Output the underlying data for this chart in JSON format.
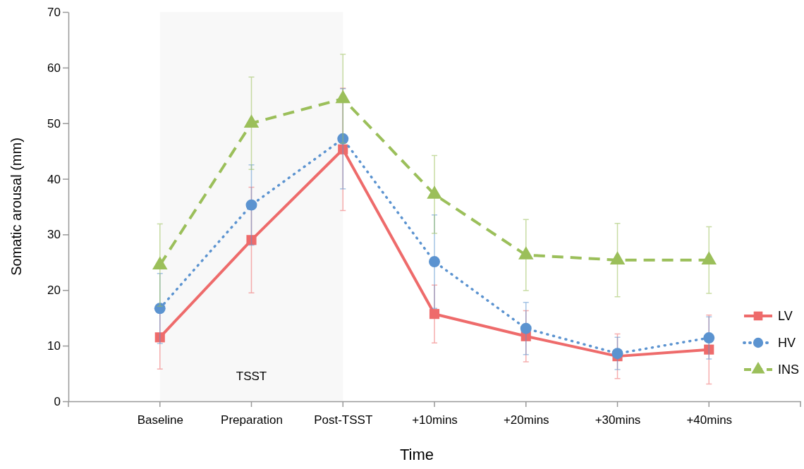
{
  "chart_data": {
    "type": "line",
    "xlabel": "Time",
    "ylabel": "Somatic arousal (mm)",
    "categories": [
      "Baseline",
      "Preparation",
      "Post-TSST",
      "+10mins",
      "+20mins",
      "+30mins",
      "+40mins"
    ],
    "ylim": [
      0,
      70
    ],
    "yticks": [
      0,
      10,
      20,
      30,
      40,
      50,
      60,
      70
    ],
    "grid": false,
    "legend": "right",
    "bands": [
      {
        "axis": "x",
        "from": "Baseline",
        "to": "Post-TSST",
        "label": "TSST",
        "color": "#f8f8f8"
      }
    ],
    "series": [
      {
        "name": "LV",
        "color": "#ee6b6b",
        "marker": "square",
        "line_style": "solid",
        "values": [
          11.5,
          29,
          45.3,
          15.7,
          11.7,
          8.1,
          9.3
        ],
        "errors": [
          5.7,
          9.5,
          11,
          5.2,
          4.6,
          4,
          6.2
        ]
      },
      {
        "name": "HV",
        "color": "#5b93d0",
        "marker": "circle",
        "line_style": "dotted",
        "values": [
          16.7,
          35.3,
          47.2,
          25.1,
          13.1,
          8.6,
          11.4
        ],
        "errors": [
          6.3,
          7.2,
          9,
          8.4,
          4.7,
          2.9,
          3.8
        ]
      },
      {
        "name": "INS",
        "color": "#9bbf5a",
        "marker": "triangle",
        "line_style": "dashed",
        "values": [
          24.5,
          50,
          54.4,
          37.2,
          26.3,
          25.4,
          25.4
        ],
        "errors": [
          7.4,
          8.3,
          8,
          7,
          6.4,
          6.6,
          6
        ]
      }
    ]
  }
}
